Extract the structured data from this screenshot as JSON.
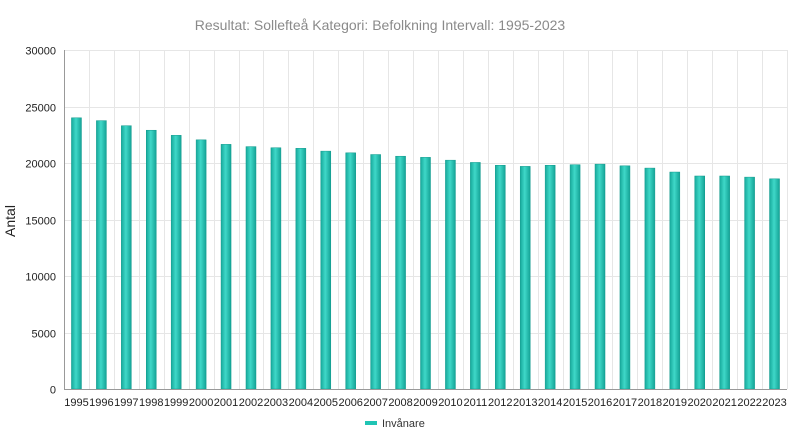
{
  "chart_data": {
    "type": "bar",
    "title": "Resultat: Sollefteå Kategori: Befolkning Intervall: 1995-2023",
    "ylabel": "Antal",
    "xlabel": "",
    "ylim": [
      0,
      30000
    ],
    "yticks": [
      0,
      5000,
      10000,
      15000,
      20000,
      25000,
      30000
    ],
    "grid": true,
    "legend_position": "bottom",
    "categories": [
      "1995",
      "1996",
      "1997",
      "1998",
      "1999",
      "2000",
      "2001",
      "2002",
      "2003",
      "2004",
      "2005",
      "2006",
      "2007",
      "2008",
      "2009",
      "2010",
      "2011",
      "2012",
      "2013",
      "2014",
      "2015",
      "2016",
      "2017",
      "2018",
      "2019",
      "2020",
      "2021",
      "2022",
      "2023"
    ],
    "series": [
      {
        "name": "Invånare",
        "color": "#20c4b4",
        "values": [
          24000,
          23750,
          23300,
          22900,
          22450,
          22050,
          21650,
          21450,
          21350,
          21300,
          21050,
          20900,
          20750,
          20600,
          20500,
          20250,
          20050,
          19800,
          19700,
          19800,
          19850,
          19900,
          19750,
          19550,
          19200,
          18850,
          18850,
          18750,
          18600
        ]
      }
    ]
  }
}
